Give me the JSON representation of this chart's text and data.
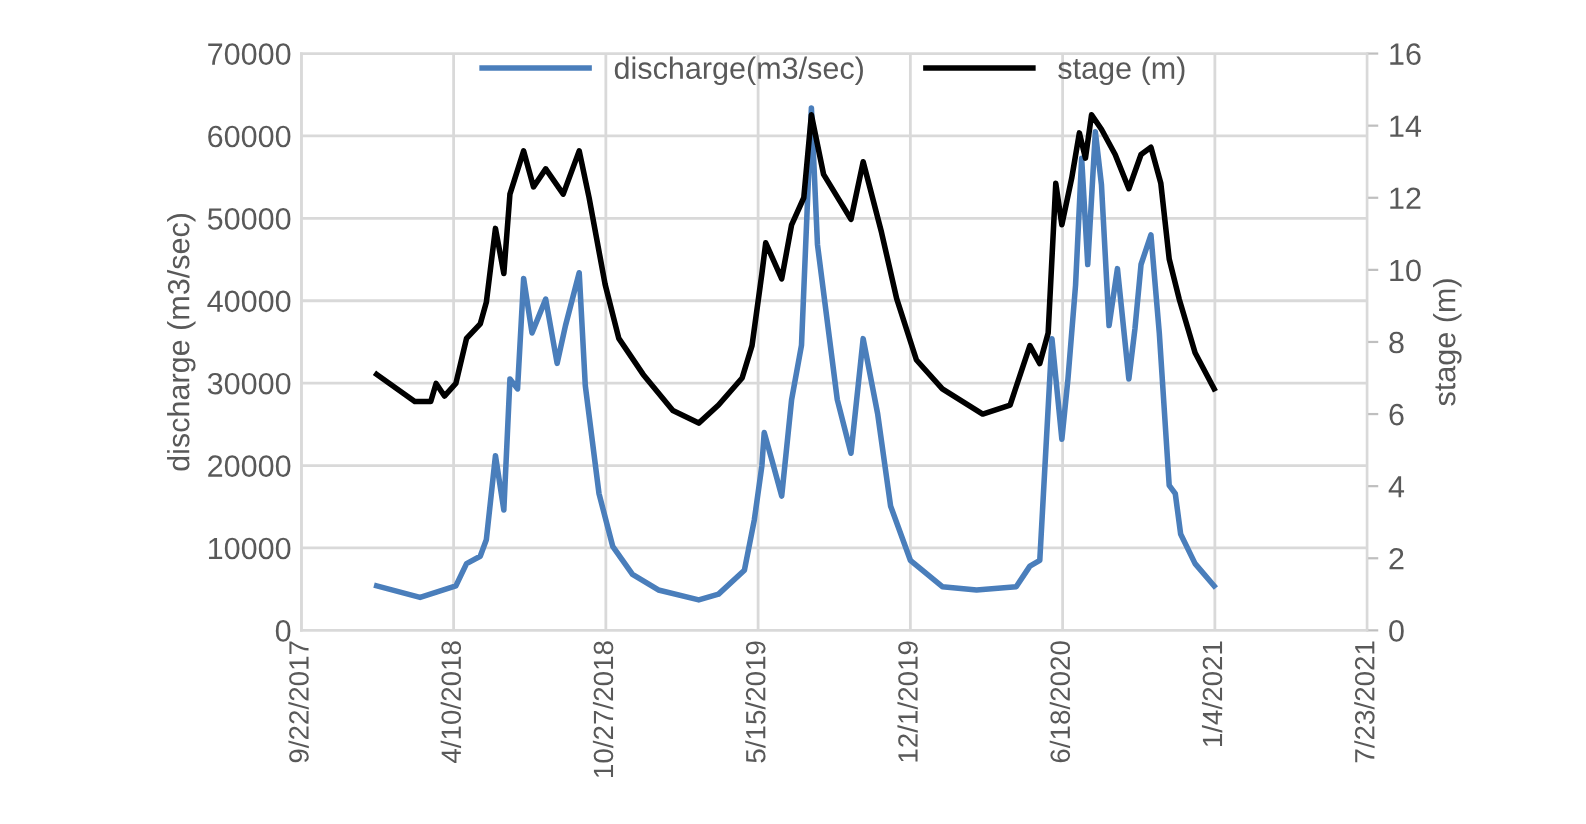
{
  "chart_data": {
    "type": "line",
    "xlabel": null,
    "ylabel": "discharge (m3/sec)",
    "y2label": "stage (m)",
    "xlim": [
      "2017-09-22",
      "2021-07-23"
    ],
    "xticks": [
      {
        "value": "2017-09-22",
        "label": "9/22/2017"
      },
      {
        "value": "2018-04-10",
        "label": "4/10/2018"
      },
      {
        "value": "2018-10-27",
        "label": "10/27/2018"
      },
      {
        "value": "2019-05-15",
        "label": "5/15/2019"
      },
      {
        "value": "2019-12-01",
        "label": "12/1/2019"
      },
      {
        "value": "2020-06-18",
        "label": "6/18/2020"
      },
      {
        "value": "2021-01-04",
        "label": "1/4/2021"
      },
      {
        "value": "2021-07-23",
        "label": "7/23/2021"
      }
    ],
    "ylim": [
      0,
      70000
    ],
    "yticks": [
      0,
      10000,
      20000,
      30000,
      40000,
      50000,
      60000,
      70000
    ],
    "y2lim": [
      0,
      16
    ],
    "y2ticks": [
      0,
      2,
      4,
      6,
      8,
      10,
      12,
      14,
      16
    ],
    "grid": true,
    "legend": "top",
    "marker": "none",
    "line_style": "solid",
    "series": [
      {
        "name": "discharge(m3/sec)",
        "color": "#4a7ebb",
        "x": [
          "2017-12-30",
          "2018-02-25",
          "2018-04-13",
          "2018-04-27",
          "2018-05-15",
          "2018-05-23",
          "2018-06-04",
          "2018-06-15",
          "2018-06-23",
          "2018-07-03",
          "2018-07-11",
          "2018-07-22",
          "2018-08-09",
          "2018-08-24",
          "2018-09-04",
          "2018-09-22",
          "2018-09-30",
          "2018-10-18",
          "2018-11-05",
          "2018-12-01",
          "2019-01-04",
          "2019-02-26",
          "2019-03-24",
          "2019-04-27",
          "2019-05-10",
          "2019-05-20",
          "2019-05-23",
          "2019-06-02",
          "2019-06-15",
          "2019-06-28",
          "2019-07-11",
          "2019-07-24",
          "2019-08-01",
          "2019-08-27",
          "2019-09-14",
          "2019-09-30",
          "2019-10-19",
          "2019-11-05",
          "2019-12-01",
          "2020-01-12",
          "2020-02-26",
          "2020-04-18",
          "2020-05-06",
          "2020-05-19",
          "2020-06-04",
          "2020-06-17",
          "2020-06-25",
          "2020-07-05",
          "2020-07-13",
          "2020-07-21",
          "2020-07-31",
          "2020-08-08",
          "2020-08-18",
          "2020-08-29",
          "2020-09-13",
          "2020-09-21",
          "2020-09-29",
          "2020-10-12",
          "2020-10-23",
          "2020-11-05",
          "2020-11-13",
          "2020-11-20",
          "2020-12-09",
          "2021-01-03"
        ],
        "values": [
          5400,
          4000,
          5400,
          8100,
          9000,
          11000,
          21200,
          14600,
          30500,
          29300,
          42700,
          36100,
          40200,
          32400,
          37000,
          43400,
          29700,
          16600,
          10200,
          6800,
          4900,
          3700,
          4400,
          7300,
          13400,
          20000,
          24000,
          20700,
          16300,
          28000,
          34600,
          63400,
          46800,
          28000,
          21500,
          35400,
          26300,
          15100,
          8500,
          5300,
          4900,
          5300,
          7800,
          8500,
          35400,
          23200,
          30500,
          41900,
          57300,
          44400,
          60500,
          54100,
          37000,
          43900,
          30500,
          36600,
          44400,
          48000,
          36100,
          17600,
          16600,
          11700,
          8100,
          5400
        ]
      },
      {
        "name": "stage (m)",
        "color": "#000000",
        "axis": "y2",
        "x": [
          "2017-12-30",
          "2018-02-18",
          "2018-03-11",
          "2018-03-18",
          "2018-03-29",
          "2018-04-13",
          "2018-04-27",
          "2018-05-15",
          "2018-05-23",
          "2018-06-04",
          "2018-06-15",
          "2018-06-23",
          "2018-07-11",
          "2018-07-24",
          "2018-08-09",
          "2018-09-01",
          "2018-09-22",
          "2018-10-05",
          "2018-10-26",
          "2018-11-13",
          "2018-12-15",
          "2019-01-23",
          "2019-02-26",
          "2019-03-24",
          "2019-04-24",
          "2019-05-07",
          "2019-05-20",
          "2019-05-25",
          "2019-06-15",
          "2019-06-28",
          "2019-07-14",
          "2019-07-24",
          "2019-08-09",
          "2019-09-14",
          "2019-09-30",
          "2019-10-24",
          "2019-11-13",
          "2019-12-09",
          "2020-01-12",
          "2020-03-05",
          "2020-04-10",
          "2020-05-06",
          "2020-05-19",
          "2020-05-30",
          "2020-06-09",
          "2020-06-17",
          "2020-06-30",
          "2020-07-10",
          "2020-07-18",
          "2020-07-26",
          "2020-08-08",
          "2020-08-26",
          "2020-09-13",
          "2020-09-29",
          "2020-10-12",
          "2020-10-25",
          "2020-11-05",
          "2020-11-18",
          "2020-12-09",
          "2021-01-03"
        ],
        "values": [
          7.1,
          6.35,
          6.35,
          6.85,
          6.5,
          6.85,
          8.1,
          8.5,
          9.1,
          11.15,
          9.9,
          12.1,
          13.3,
          12.3,
          12.8,
          12.1,
          13.3,
          12.0,
          9.6,
          8.1,
          7.1,
          6.1,
          5.75,
          6.25,
          7.0,
          7.9,
          9.9,
          10.75,
          9.75,
          11.25,
          12.0,
          14.3,
          12.65,
          11.4,
          13.0,
          11.05,
          9.2,
          7.5,
          6.7,
          6.0,
          6.25,
          7.9,
          7.4,
          8.25,
          12.4,
          11.25,
          12.55,
          13.8,
          13.1,
          14.3,
          13.9,
          13.2,
          12.25,
          13.2,
          13.4,
          12.4,
          10.3,
          9.2,
          7.7,
          6.7
        ]
      }
    ]
  }
}
